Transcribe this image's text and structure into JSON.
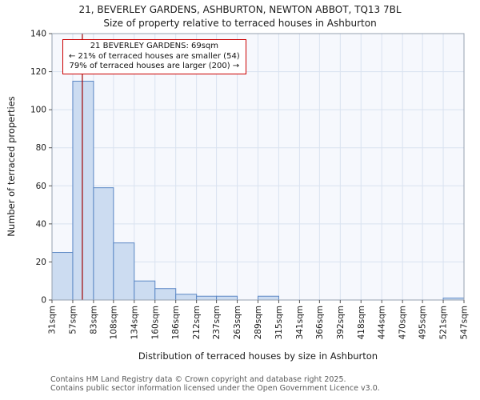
{
  "chart_data": {
    "type": "bar",
    "title": "21, BEVERLEY GARDENS, ASHBURTON, NEWTON ABBOT, TQ13 7BL",
    "subtitle": "Size of property relative to terraced houses in Ashburton",
    "xlabel": "Distribution of terraced houses by size in Ashburton",
    "ylabel": "Number of terraced properties",
    "bin_edges": [
      31,
      57,
      83,
      108,
      134,
      160,
      186,
      212,
      237,
      263,
      289,
      315,
      341,
      366,
      392,
      418,
      444,
      470,
      495,
      521,
      547
    ],
    "tick_labels": [
      "31sqm",
      "57sqm",
      "83sqm",
      "108sqm",
      "134sqm",
      "160sqm",
      "186sqm",
      "212sqm",
      "237sqm",
      "263sqm",
      "289sqm",
      "315sqm",
      "341sqm",
      "366sqm",
      "392sqm",
      "418sqm",
      "444sqm",
      "470sqm",
      "495sqm",
      "521sqm",
      "547sqm"
    ],
    "values": [
      25,
      115,
      59,
      30,
      10,
      6,
      3,
      2,
      2,
      0,
      2,
      0,
      0,
      0,
      0,
      0,
      0,
      0,
      0,
      1
    ],
    "ylim": [
      0,
      140
    ],
    "yticks": [
      0,
      20,
      40,
      60,
      80,
      100,
      120,
      140
    ],
    "grid": "on",
    "marker": {
      "value": 69,
      "color": "#a00000"
    },
    "annotation": {
      "line1": "21 BEVERLEY GARDENS: 69sqm",
      "line2": "← 21% of terraced houses are smaller (54)",
      "line3": "79% of terraced houses are larger (200) →"
    },
    "colors": {
      "bar_fill": "#ccdcf1",
      "bar_edge": "#5b87c5",
      "grid": "#d9e2f0",
      "plot_bg": "#f6f8fd",
      "frame": "#95a0b0",
      "marker": "#a00000"
    }
  },
  "footer": {
    "line1": "Contains HM Land Registry data © Crown copyright and database right 2025.",
    "line2": "Contains public sector information licensed under the Open Government Licence v3.0."
  }
}
